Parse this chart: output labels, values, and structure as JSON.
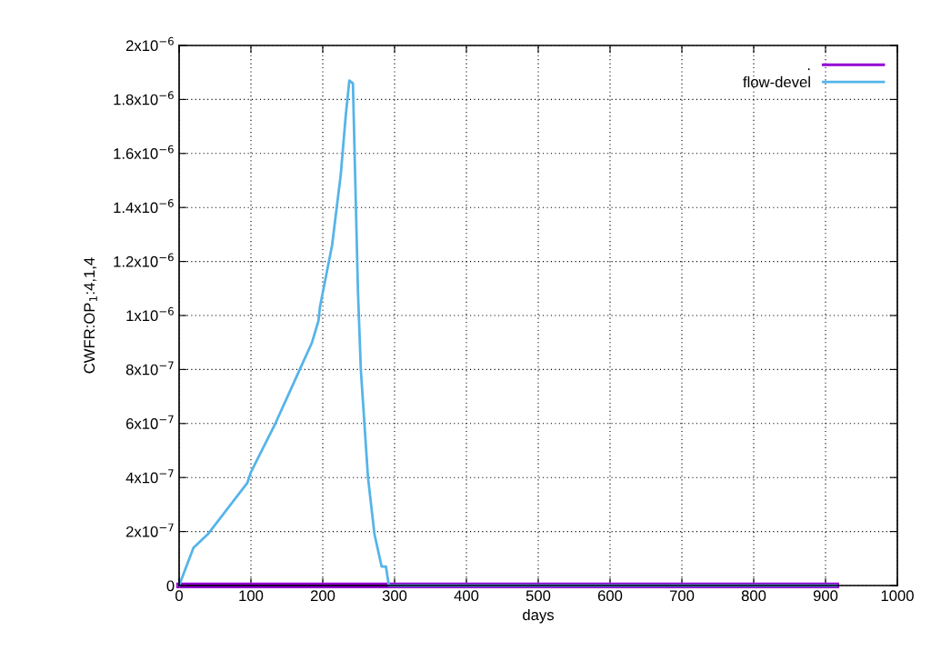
{
  "chart_data": {
    "type": "line",
    "xlabel": "days",
    "ylabel": "CWFR:OP$_{1}$:4,1,4",
    "xlim": [
      0,
      1000
    ],
    "xticks": [
      0,
      100,
      200,
      300,
      400,
      500,
      600,
      700,
      800,
      900,
      1000
    ],
    "ylim": [
      0,
      2e-06
    ],
    "yticks": [
      {
        "value": 0,
        "label": "0"
      },
      {
        "value": 2e-07,
        "label": "2x10$^{−7}$"
      },
      {
        "value": 4e-07,
        "label": "4x10$^{−7}$"
      },
      {
        "value": 6e-07,
        "label": "6x10$^{−7}$"
      },
      {
        "value": 8e-07,
        "label": "8x10$^{−7}$"
      },
      {
        "value": 1e-06,
        "label": "1x10$^{−6}$"
      },
      {
        "value": 1.2e-06,
        "label": "1.2x10$^{−6}$"
      },
      {
        "value": 1.4e-06,
        "label": "1.4x10$^{−6}$"
      },
      {
        "value": 1.6e-06,
        "label": "1.6x10$^{−6}$"
      },
      {
        "value": 1.8e-06,
        "label": "1.8x10$^{−6}$"
      },
      {
        "value": 2e-06,
        "label": "2x10$^{−6}$"
      }
    ],
    "grid": true,
    "legend": "top right",
    "line_style": "solid",
    "series": [
      {
        "name": ".",
        "color": "#9400d3",
        "x": [
          0,
          915
        ],
        "values": [
          0,
          0
        ]
      },
      {
        "name": "flow-devel",
        "color": "#56b4e9",
        "x": [
          0,
          20,
          40,
          95,
          100,
          134,
          168,
          185,
          194,
          196,
          213,
          219,
          225,
          232,
          237,
          242,
          249,
          253,
          263,
          272,
          282,
          288,
          292,
          915
        ],
        "values": [
          0,
          1.4e-07,
          1.9e-07,
          3.8e-07,
          4.2e-07,
          6e-07,
          8e-07,
          9e-07,
          9.8e-07,
          1.03e-06,
          1.26e-06,
          1.39e-06,
          1.52e-06,
          1.74e-06,
          1.87e-06,
          1.86e-06,
          1.09e-06,
          8e-07,
          4e-07,
          1.9e-07,
          7e-08,
          7e-08,
          0,
          0
        ]
      }
    ]
  }
}
